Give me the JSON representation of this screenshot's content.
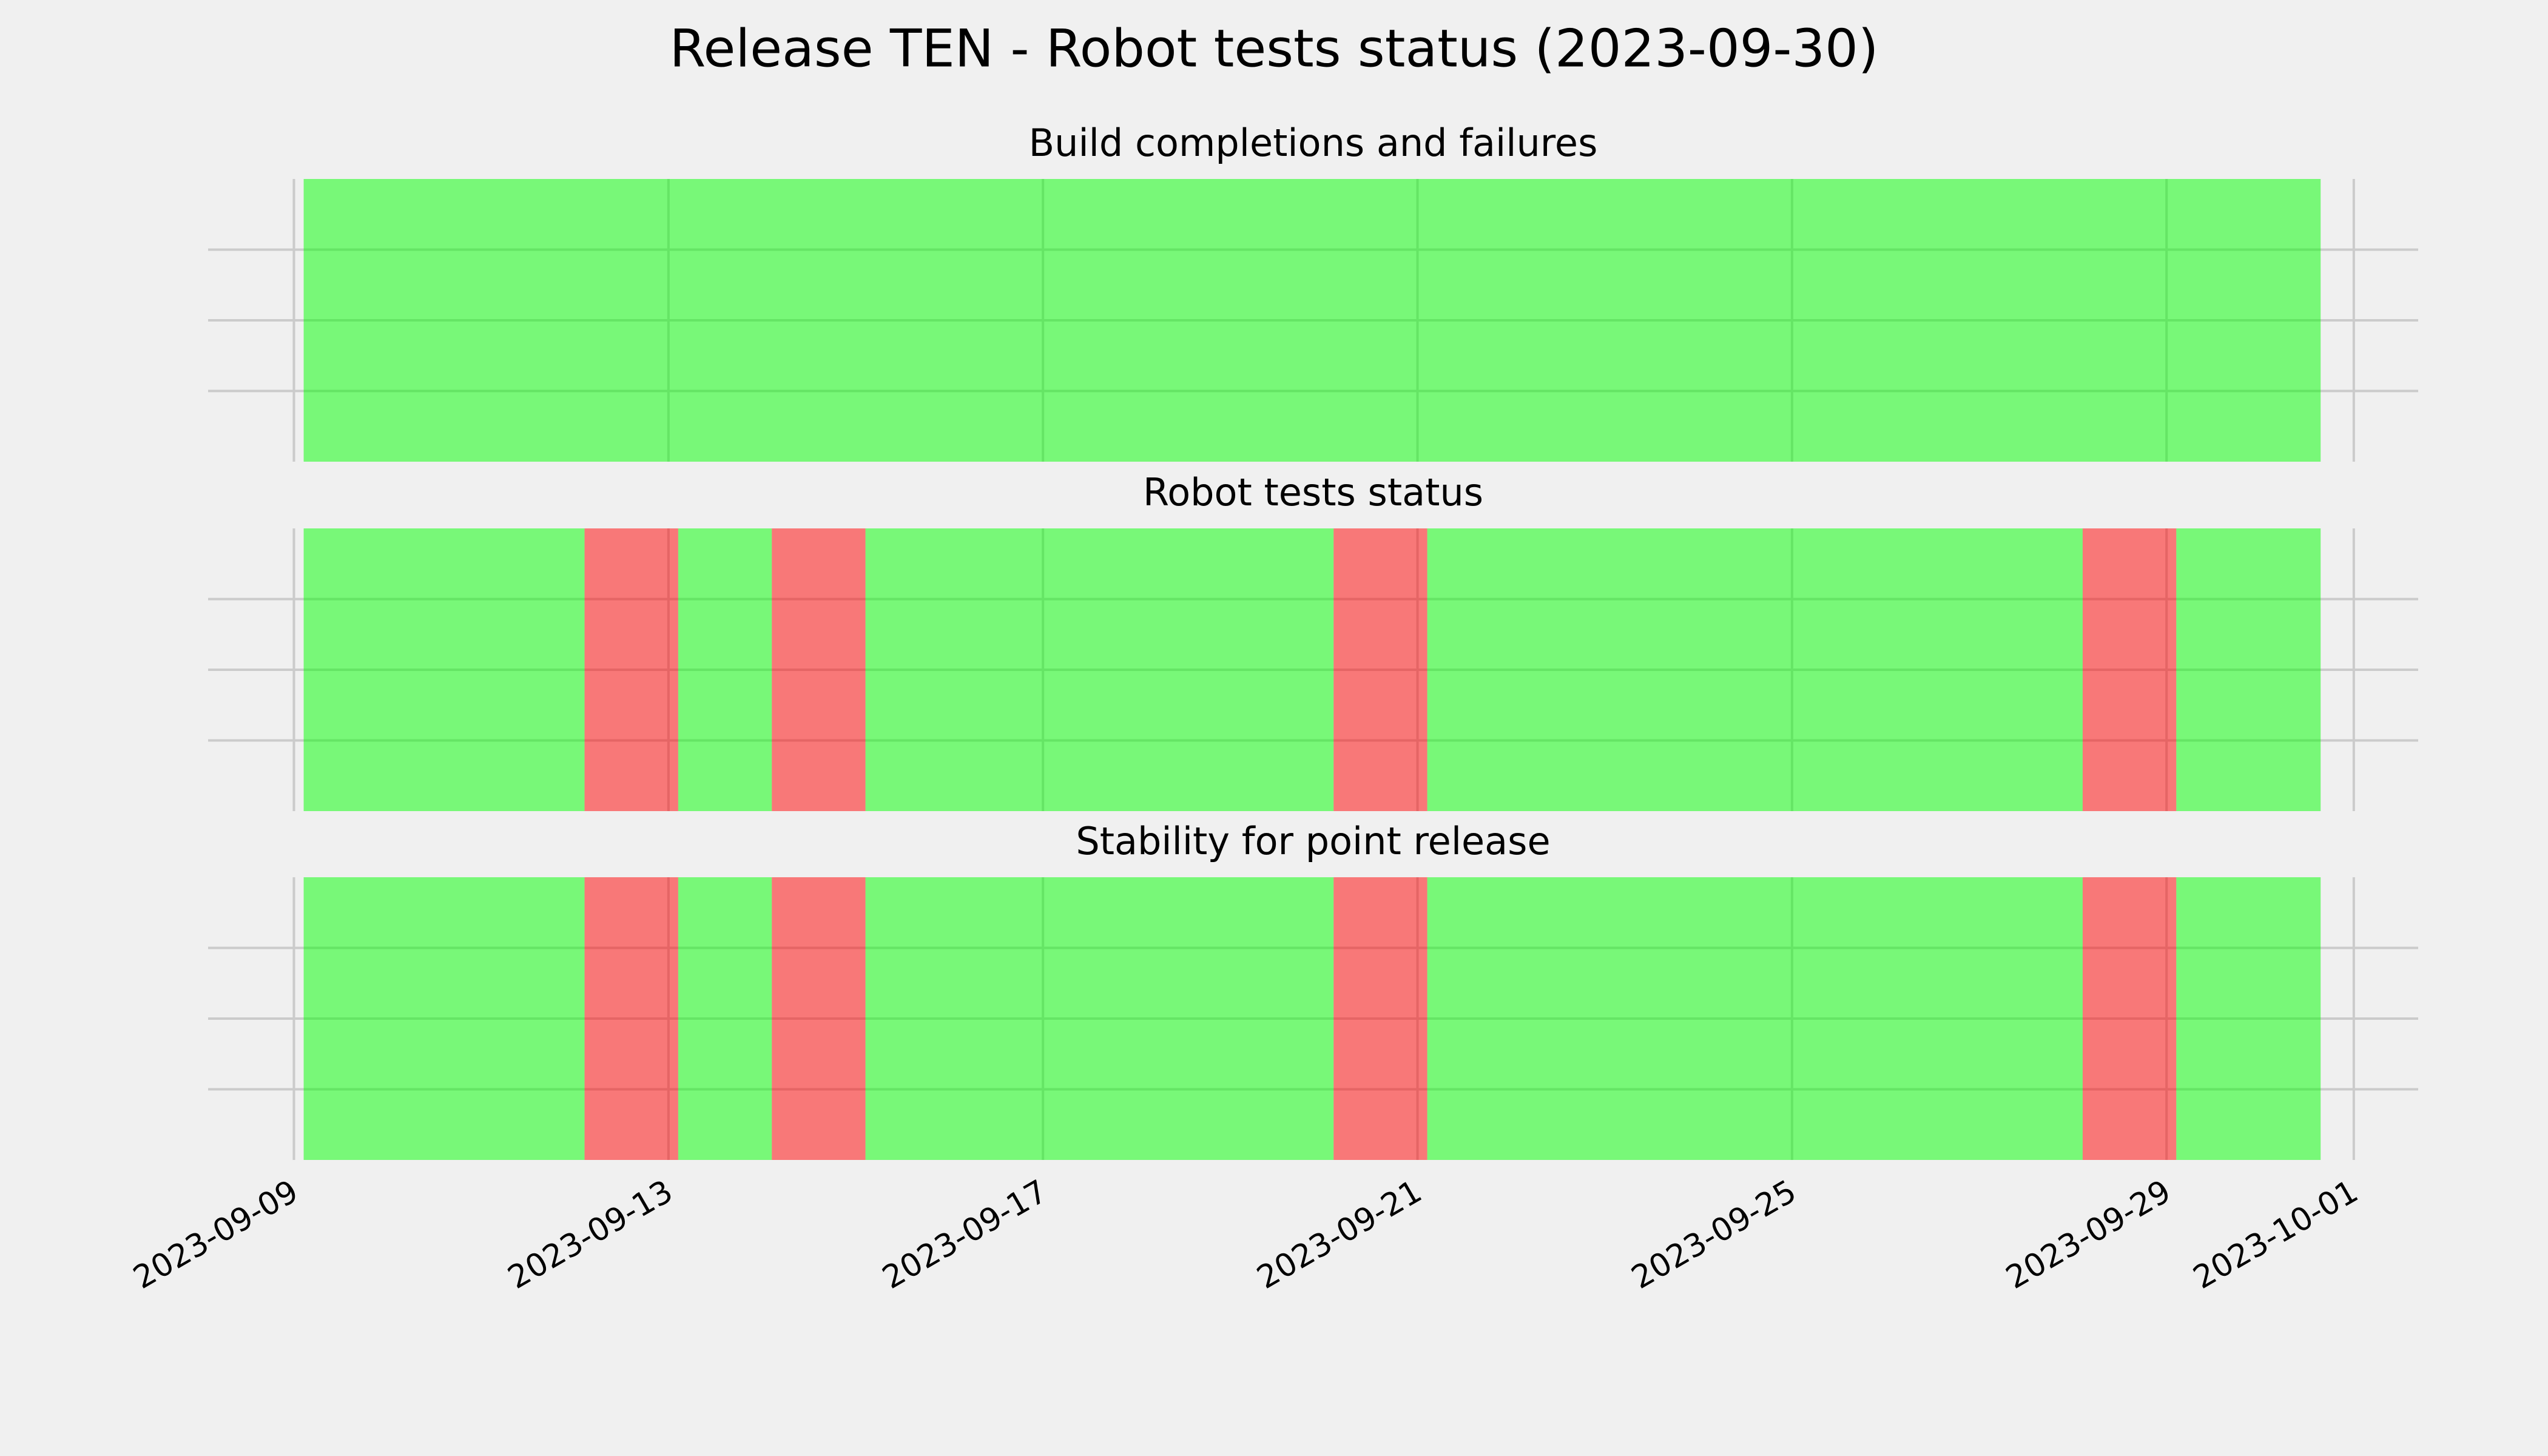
{
  "chart_data": {
    "type": "timeline",
    "title": "Release TEN - Robot tests status (2023-09-30)",
    "xlim": [
      "2023-09-08T02:00",
      "2023-10-01T16:30"
    ],
    "xticks": [
      "2023-09-09",
      "2023-09-13",
      "2023-09-17",
      "2023-09-21",
      "2023-09-25",
      "2023-09-29",
      "2023-10-01"
    ],
    "ylim": [
      0,
      1
    ],
    "yticks": [
      0.25,
      0.5,
      0.75
    ],
    "grid": true,
    "colors": {
      "pass": "#00ff00",
      "fail": "#ff0000"
    },
    "panels": [
      {
        "title": "Build completions and failures",
        "spans": {
          "start": [
            "2023-09-09T02:30"
          ],
          "end": [
            "2023-09-30T15:30"
          ],
          "status": [
            "pass"
          ]
        }
      },
      {
        "title": "Robot tests status",
        "spans": {
          "start": [
            "2023-09-09T02:30",
            "2023-09-12T02:30",
            "2023-09-13T02:30",
            "2023-09-14T02:30",
            "2023-09-15T02:30",
            "2023-09-20T02:30",
            "2023-09-21T02:30",
            "2023-09-28T02:30",
            "2023-09-29T02:30"
          ],
          "end": [
            "2023-09-12T02:30",
            "2023-09-13T02:30",
            "2023-09-14T02:30",
            "2023-09-15T02:30",
            "2023-09-20T02:30",
            "2023-09-21T02:30",
            "2023-09-28T02:30",
            "2023-09-29T02:30",
            "2023-09-30T15:30"
          ],
          "status": [
            "pass",
            "fail",
            "pass",
            "fail",
            "pass",
            "fail",
            "pass",
            "fail",
            "pass"
          ]
        }
      },
      {
        "title": "Stability for point release",
        "spans": {
          "start": [
            "2023-09-09T02:30",
            "2023-09-12T02:30",
            "2023-09-13T02:30",
            "2023-09-14T02:30",
            "2023-09-15T02:30",
            "2023-09-20T02:30",
            "2023-09-21T02:30",
            "2023-09-28T02:30",
            "2023-09-29T02:30"
          ],
          "end": [
            "2023-09-12T02:30",
            "2023-09-13T02:30",
            "2023-09-14T02:30",
            "2023-09-15T02:30",
            "2023-09-20T02:30",
            "2023-09-21T02:30",
            "2023-09-28T02:30",
            "2023-09-29T02:30",
            "2023-09-30T15:30"
          ],
          "status": [
            "pass",
            "fail",
            "pass",
            "fail",
            "pass",
            "fail",
            "pass",
            "fail",
            "pass"
          ]
        }
      }
    ]
  }
}
